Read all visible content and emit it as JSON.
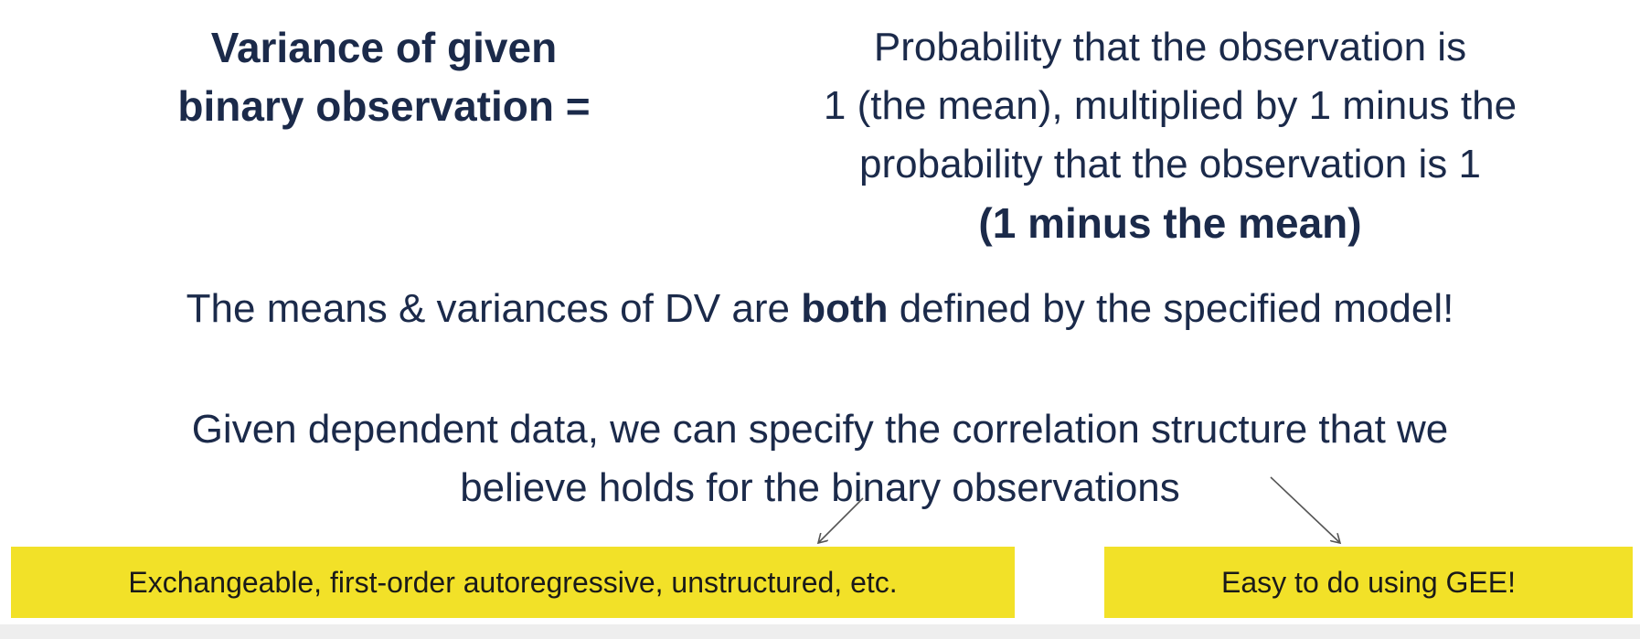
{
  "variance_term": {
    "line1": "Variance of given",
    "line2": "binary observation ="
  },
  "definition": {
    "line1": "Probability that the observation is",
    "line2": "1 (the mean), multiplied by 1 minus the",
    "line3": "probability that the observation is 1",
    "line4": "(1 minus the mean)"
  },
  "statement": {
    "before": "The means & variances of DV are ",
    "emphasis": "both",
    "after": " defined by the specified model!"
  },
  "dependent": {
    "line1": "Given dependent data, we can specify the correlation structure that we",
    "line2": "believe holds for the binary observations"
  },
  "callouts": {
    "structures": "Exchangeable, first-order autoregressive, unstructured, etc.",
    "gee": "Easy to do using GEE!"
  },
  "colors": {
    "text": "#1b2a4a",
    "callout_fill": "#f2e128",
    "arrow": "#555555"
  }
}
